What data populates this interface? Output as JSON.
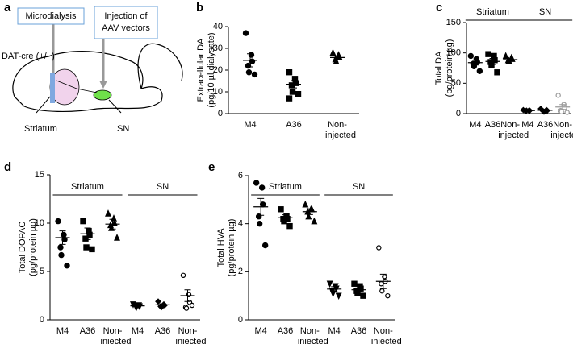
{
  "diagram": {
    "label": "a",
    "boxes": [
      "Microdialysis",
      [
        "Injection of",
        "AAV vectors"
      ]
    ],
    "mouse": "DAT-cre (+/−)",
    "regions": [
      "Striatum",
      "SN"
    ]
  },
  "chart_data": [
    {
      "type": "dot",
      "label": "b",
      "ylabel": [
        "Extracellular DA",
        "(pg/10 µl dialysate)"
      ],
      "ylim": [
        0,
        40
      ],
      "yticks": [
        0,
        10,
        20,
        30,
        40
      ],
      "groups": [
        {
          "categories": [
            {
              "name": "M4",
              "marker": "circle",
              "color": "#000000",
              "points": [
                37,
                27,
                24,
                22,
                19,
                18
              ],
              "mean": 24.5,
              "sem": 3
            },
            {
              "name": "A36",
              "marker": "square",
              "color": "#000000",
              "points": [
                19,
                16,
                14,
                13,
                10,
                9,
                7
              ],
              "mean": 13.5,
              "sem": 1.7
            },
            {
              "name": [
                "Non-",
                "injected"
              ],
              "marker": "triangle",
              "color": "#000000",
              "points": [
                28,
                27,
                26,
                25,
                24
              ],
              "mean": 25.8,
              "sem": 0.8
            }
          ]
        }
      ]
    },
    {
      "type": "dot",
      "label": "c",
      "ylabel": [
        "Total DA",
        "(pg/protein µg)"
      ],
      "ylim": [
        0,
        150
      ],
      "yticks": [
        0,
        50,
        100,
        150
      ],
      "groups": [
        {
          "name": "Striatum",
          "categories": [
            {
              "name": "M4",
              "marker": "circle",
              "color": "#000000",
              "points": [
                95,
                90,
                85,
                82,
                78,
                70
              ],
              "mean": 84,
              "sem": 4
            },
            {
              "name": "A36",
              "marker": "square",
              "color": "#000000",
              "points": [
                98,
                95,
                88,
                85,
                80,
                68
              ],
              "mean": 86,
              "sem": 5
            },
            {
              "name": [
                "Non-",
                "injected"
              ],
              "marker": "triangle",
              "color": "#000000",
              "points": [
                95,
                92,
                90,
                88,
                87
              ],
              "mean": 89,
              "sem": 2
            }
          ]
        },
        {
          "name": "SN",
          "categories": [
            {
              "name": "M4",
              "marker": "diamond",
              "color": "#000000",
              "points": [
                6,
                5,
                5,
                4,
                5
              ],
              "mean": 5,
              "sem": 0.5
            },
            {
              "name": "A36",
              "marker": "diamond",
              "color": "#000000",
              "points": [
                8,
                6,
                5,
                4,
                3
              ],
              "mean": 5.5,
              "sem": 0.8
            },
            {
              "name": [
                "Non-",
                "injected"
              ],
              "marker": "open-circle",
              "color": "#999999",
              "points": [
                30,
                15,
                10,
                5,
                3,
                2
              ],
              "mean": 11,
              "sem": 4
            }
          ]
        }
      ]
    },
    {
      "type": "dot",
      "label": "d",
      "ylabel": [
        "Total DOPAC",
        "(pg/protein µg)"
      ],
      "ylim": [
        0,
        15
      ],
      "yticks": [
        0,
        5,
        10,
        15
      ],
      "groups": [
        {
          "name": "Striatum",
          "categories": [
            {
              "name": "M4",
              "marker": "circle",
              "color": "#000000",
              "points": [
                10.2,
                8.8,
                8.3,
                7.5,
                6.7,
                5.6
              ],
              "mean": 8.5,
              "sem": 0.7
            },
            {
              "name": "A36",
              "marker": "square",
              "color": "#000000",
              "points": [
                10.2,
                9.2,
                8.8,
                8.4,
                7.5,
                7.3
              ],
              "mean": 8.9,
              "sem": 0.6
            },
            {
              "name": [
                "Non-",
                "injected"
              ],
              "marker": "triangle",
              "color": "#000000",
              "points": [
                11,
                10.5,
                10,
                9.8,
                9.5,
                8.5
              ],
              "mean": 9.9,
              "sem": 0.5
            }
          ]
        },
        {
          "name": "SN",
          "categories": [
            {
              "name": "M4",
              "marker": "triangle-down",
              "color": "#000000",
              "points": [
                1.6,
                1.5,
                1.4,
                1.4,
                1.3
              ],
              "mean": 1.45,
              "sem": 0.06
            },
            {
              "name": "A36",
              "marker": "diamond",
              "color": "#000000",
              "points": [
                1.9,
                1.6,
                1.5,
                1.4,
                1.3
              ],
              "mean": 1.55,
              "sem": 0.1
            },
            {
              "name": [
                "Non-",
                "injected"
              ],
              "marker": "open-circle",
              "color": "#000000",
              "points": [
                4.6,
                2.6,
                1.8,
                1.3,
                1.2,
                1.5
              ],
              "mean": 2.5,
              "sem": 0.6
            }
          ]
        }
      ]
    },
    {
      "type": "dot",
      "label": "e",
      "ylabel": [
        "Total HVA",
        "(pg/protein µg)"
      ],
      "ylim": [
        0,
        6
      ],
      "yticks": [
        0,
        2,
        4,
        6
      ],
      "groups": [
        {
          "name": "Striatum",
          "categories": [
            {
              "name": "M4",
              "marker": "circle",
              "color": "#000000",
              "points": [
                5.7,
                5.5,
                4.8,
                4.3,
                4.0,
                3.1
              ],
              "mean": 4.7,
              "sem": 0.35
            },
            {
              "name": "A36",
              "marker": "square",
              "color": "#000000",
              "points": [
                4.6,
                4.3,
                4.2,
                4.2,
                4.1,
                3.9
              ],
              "mean": 4.25,
              "sem": 0.12
            },
            {
              "name": [
                "Non-",
                "injected"
              ],
              "marker": "triangle",
              "color": "#000000",
              "points": [
                4.8,
                4.6,
                4.6,
                4.5,
                4.3,
                4.1
              ],
              "mean": 4.5,
              "sem": 0.12
            }
          ]
        },
        {
          "name": "SN",
          "categories": [
            {
              "name": "M4",
              "marker": "triangle-down",
              "color": "#000000",
              "points": [
                1.5,
                1.4,
                1.3,
                1.2,
                1.1,
                1.0
              ],
              "mean": 1.28,
              "sem": 0.1
            },
            {
              "name": "A36",
              "marker": "square",
              "color": "#000000",
              "points": [
                1.5,
                1.4,
                1.3,
                1.2,
                1.1,
                1.0
              ],
              "mean": 1.25,
              "sem": 0.08
            },
            {
              "name": [
                "Non-",
                "injected"
              ],
              "marker": "open-circle",
              "color": "#000000",
              "points": [
                3.0,
                1.8,
                1.6,
                1.5,
                1.2,
                1.0
              ],
              "mean": 1.6,
              "sem": 0.3
            }
          ]
        }
      ]
    }
  ]
}
